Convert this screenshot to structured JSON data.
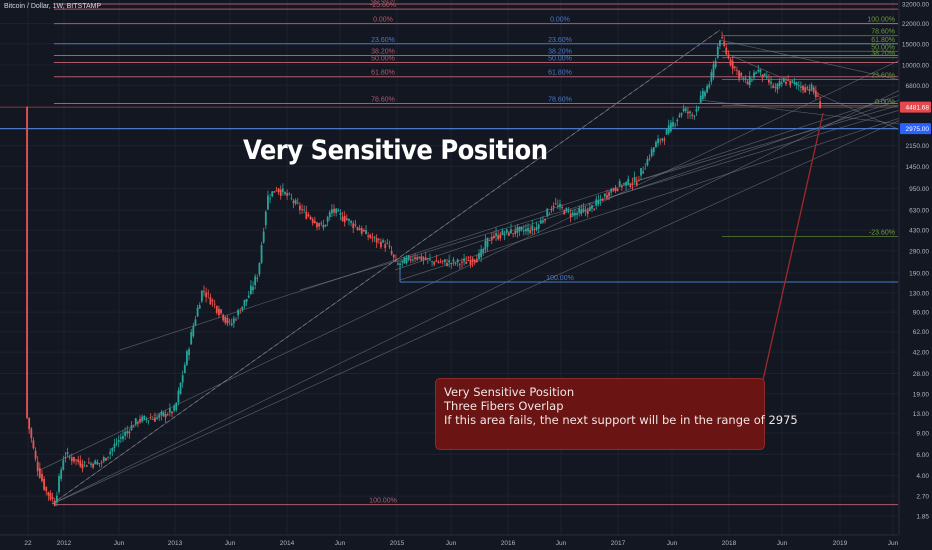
{
  "header": {
    "symbol_line": "Bitcoin / Dollar, 1W, BITSTAMP"
  },
  "annotation_title": "Very Sensitive Position",
  "note": {
    "line1": "Very Sensitive Position",
    "line2": "",
    "line3": "Three Fibers Overlap",
    "line4": "If this area fails, the next support will be in the range of 2975"
  },
  "price_badges": {
    "current": {
      "label": "4481.68",
      "color": "#e5484d"
    },
    "target": {
      "label": "2975.00",
      "color": "#2962ff"
    }
  },
  "colors": {
    "background": "#131722",
    "up": "#26a69a",
    "down": "#ef5350",
    "fib_red": "#b05a6a",
    "fib_blue": "#4a78c8",
    "fib_green": "#6b9a3a",
    "callout": "#6b1414"
  },
  "chart_data": {
    "type": "candlestick",
    "title": "",
    "y_scale": "log",
    "y_axis_ticks": [
      "32000.00",
      "22000.00",
      "15000.00",
      "10000.00",
      "6800.00",
      "4481.68",
      "2975.00",
      "2150.00",
      "1450.00",
      "950.00",
      "630.00",
      "430.00",
      "290.00",
      "190.00",
      "130.00",
      "90.00",
      "62.00",
      "42.00",
      "28.00",
      "19.00",
      "13.00",
      "9.00",
      "6.00",
      "4.00",
      "2.70",
      "1.85"
    ],
    "x_axis_ticks": [
      "22",
      "2012",
      "Jun",
      "2013",
      "Jun",
      "2014",
      "Jun",
      "2015",
      "Jun",
      "2016",
      "Jun",
      "2017",
      "Jun",
      "2018",
      "Jun",
      "2019",
      "Jun"
    ],
    "weekly_closes_path": [
      [
        "2011-09",
        12
      ],
      [
        "2011-10",
        5
      ],
      [
        "2011-11",
        3
      ],
      [
        "2011-12",
        2.4
      ],
      [
        "2012-01",
        6
      ],
      [
        "2012-03",
        5
      ],
      [
        "2012-05",
        5.1
      ],
      [
        "2012-07",
        8
      ],
      [
        "2012-09",
        11.5
      ],
      [
        "2012-11",
        12
      ],
      [
        "2013-01",
        14
      ],
      [
        "2013-03",
        70
      ],
      [
        "2013-04",
        140
      ],
      [
        "2013-05",
        110
      ],
      [
        "2013-07",
        70
      ],
      [
        "2013-09",
        125
      ],
      [
        "2013-10",
        190
      ],
      [
        "2013-11",
        800
      ],
      [
        "2013-12",
        950
      ],
      [
        "2014-01",
        850
      ],
      [
        "2014-03",
        600
      ],
      [
        "2014-05",
        450
      ],
      [
        "2014-06",
        630
      ],
      [
        "2014-08",
        500
      ],
      [
        "2014-10",
        380
      ],
      [
        "2014-12",
        320
      ],
      [
        "2015-01",
        220
      ],
      [
        "2015-03",
        260
      ],
      [
        "2015-05",
        235
      ],
      [
        "2015-08",
        230
      ],
      [
        "2015-10",
        260
      ],
      [
        "2015-11",
        370
      ],
      [
        "2016-01",
        410
      ],
      [
        "2016-04",
        440
      ],
      [
        "2016-06",
        700
      ],
      [
        "2016-08",
        580
      ],
      [
        "2016-10",
        640
      ],
      [
        "2016-12",
        900
      ],
      [
        "2017-01",
        1000
      ],
      [
        "2017-03",
        1100
      ],
      [
        "2017-05",
        2200
      ],
      [
        "2017-06",
        2600
      ],
      [
        "2017-08",
        4300
      ],
      [
        "2017-09",
        3800
      ],
      [
        "2017-11",
        7500
      ],
      [
        "2017-12",
        17000
      ],
      [
        "2018-01",
        11000
      ],
      [
        "2018-02",
        8500
      ],
      [
        "2018-03",
        7000
      ],
      [
        "2018-04",
        9200
      ],
      [
        "2018-06",
        6300
      ],
      [
        "2018-07",
        7500
      ],
      [
        "2018-09",
        6500
      ],
      [
        "2018-10",
        6400
      ],
      [
        "2018-11",
        4481.68
      ]
    ],
    "fib_levels_left": [
      {
        "label": "88.60%",
        "price": 32000,
        "color": "red"
      },
      {
        "label": "-25.60%",
        "price": 29000,
        "color": "red"
      },
      {
        "label": "0.00%",
        "price": 22000,
        "color": "red"
      },
      {
        "label": "23.60%",
        "price": 15000,
        "color": "blue"
      },
      {
        "label": "38.20%",
        "price": 12000,
        "color": "red"
      },
      {
        "label": "50.00%",
        "price": 10500,
        "color": "red"
      },
      {
        "label": "61.80%",
        "price": 8000,
        "color": "red"
      },
      {
        "label": "78.60%",
        "price": 4800,
        "color": "red"
      },
      {
        "label": "100.00%",
        "price": 2.3,
        "color": "red"
      }
    ],
    "fib_levels_mid": [
      {
        "label": "0.00%",
        "price": 22000
      },
      {
        "label": "23.60%",
        "price": 15000
      },
      {
        "label": "38.20%",
        "price": 12000
      },
      {
        "label": "50.00%",
        "price": 10500
      },
      {
        "label": "61.80%",
        "price": 8000
      },
      {
        "label": "78.60%",
        "price": 4800
      },
      {
        "label": "100.00%",
        "price": 160
      }
    ],
    "fib_levels_right": [
      {
        "label": "100.00%",
        "price": 22000
      },
      {
        "label": "78.60%",
        "price": 17500
      },
      {
        "label": "61.80%",
        "price": 15000
      },
      {
        "label": "50.00%",
        "price": 13000
      },
      {
        "label": "38.20%",
        "price": 11500
      },
      {
        "label": "23.60%",
        "price": 7600
      },
      {
        "label": "0.00%",
        "price": 4600
      },
      {
        "label": "-23.60%",
        "price": 380
      }
    ],
    "support_target": 2975,
    "current_price": 4481.68
  }
}
